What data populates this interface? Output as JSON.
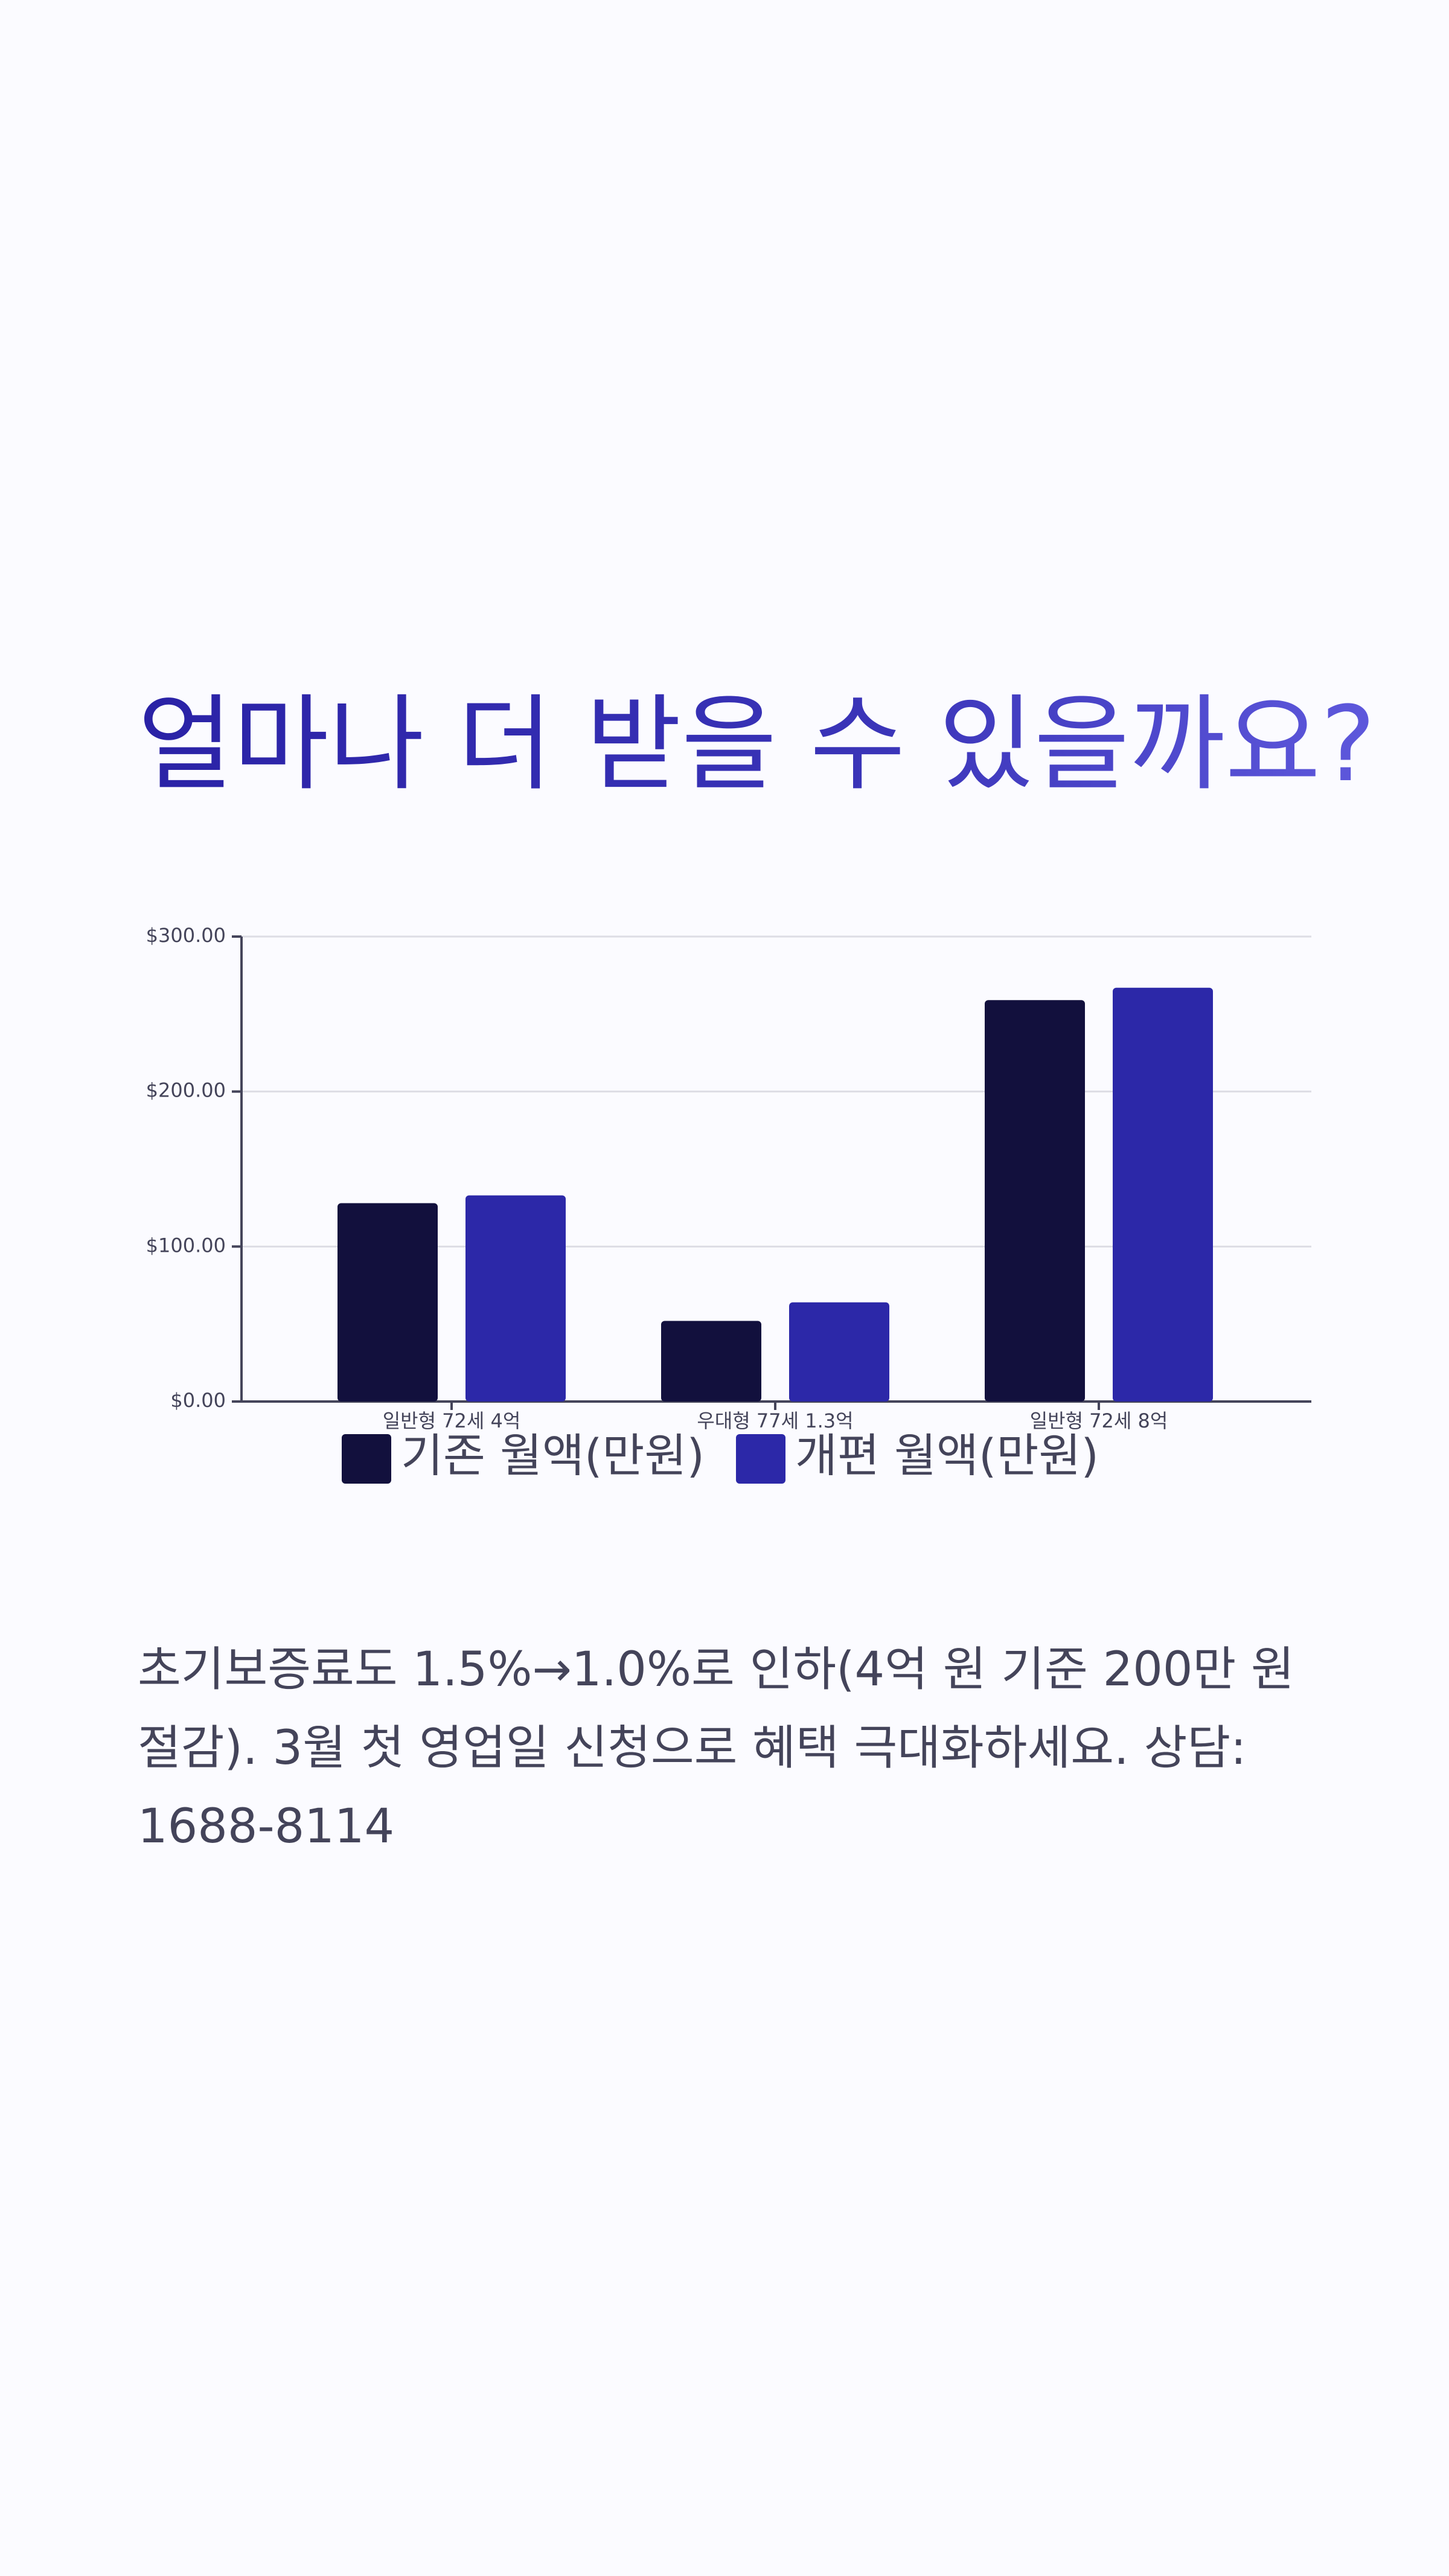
{
  "chart_data": {
    "type": "bar",
    "title": "얼마나 더 받을 수 있을까요?",
    "categories": [
      "일반형 72세 4억",
      "우대형 77세 1.3억",
      "일반형 72세 8억"
    ],
    "series": [
      {
        "name": "기존 월액(만원)",
        "color": "#12103d",
        "values": [
          128,
          52,
          259
        ]
      },
      {
        "name": "개편 월액(만원)",
        "color": "#2c28a8",
        "values": [
          133,
          64,
          267
        ]
      }
    ],
    "ylim": [
      0,
      300
    ],
    "yticks": [
      {
        "value": 0,
        "label": "$0.00"
      },
      {
        "value": 100,
        "label": "$100.00"
      },
      {
        "value": 200,
        "label": "$200.00"
      },
      {
        "value": 300,
        "label": "$300.00"
      }
    ],
    "grid": true,
    "legend": "bottom"
  },
  "description": "초기보증료도 1.5%→1.0%로 인하(4억 원 기준 200만 원 절감). 3월 첫 영업일 신청으로 혜택 극대화하세요. 상담: 1688-8114"
}
